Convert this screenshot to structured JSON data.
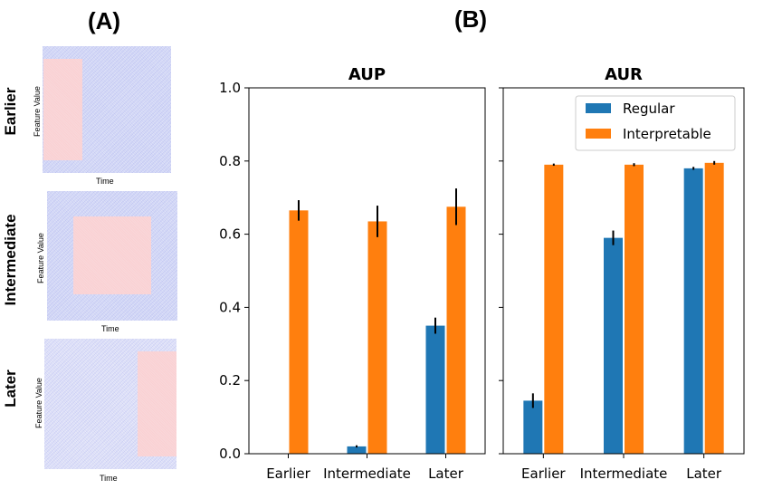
{
  "panel_a": {
    "label": "(A)",
    "rows": [
      {
        "label": "Earlier",
        "ylabel": "Feature Value",
        "xlabel": "Time"
      },
      {
        "label": "Intermediate",
        "ylabel": "Feature Value",
        "xlabel": "Time"
      },
      {
        "label": "Later",
        "ylabel": "Feature Value",
        "xlabel": "Time"
      }
    ]
  },
  "panel_b": {
    "label": "(B)"
  },
  "colors": {
    "regular": "#1f77b4",
    "interpretable": "#ff7f0e",
    "heat_bg": "#d8dcf7",
    "heat_rect": "#f8d3d6"
  },
  "chart_data": [
    {
      "type": "bar",
      "title": "AUP",
      "categories": [
        "Earlier",
        "Intermediate",
        "Later"
      ],
      "ylim": [
        0,
        1.0
      ],
      "yticks": [
        "0.0",
        "0.2",
        "0.4",
        "0.6",
        "0.8",
        "1.0"
      ],
      "series": [
        {
          "name": "Regular",
          "values": [
            0.0,
            0.02,
            0.35
          ],
          "errors": [
            0.0,
            0.003,
            0.022
          ]
        },
        {
          "name": "Interpretable",
          "values": [
            0.665,
            0.635,
            0.675
          ],
          "errors": [
            0.028,
            0.043,
            0.05
          ]
        }
      ],
      "grid": false
    },
    {
      "type": "bar",
      "title": "AUR",
      "categories": [
        "Earlier",
        "Intermediate",
        "Later"
      ],
      "ylim": [
        0,
        1.0
      ],
      "series": [
        {
          "name": "Regular",
          "values": [
            0.145,
            0.59,
            0.78
          ],
          "errors": [
            0.02,
            0.02,
            0.004
          ]
        },
        {
          "name": "Interpretable",
          "values": [
            0.79,
            0.79,
            0.795
          ],
          "errors": [
            0.003,
            0.004,
            0.005
          ]
        }
      ],
      "legend": {
        "position": "top-right",
        "entries": [
          "Regular",
          "Interpretable"
        ]
      },
      "grid": false
    }
  ]
}
